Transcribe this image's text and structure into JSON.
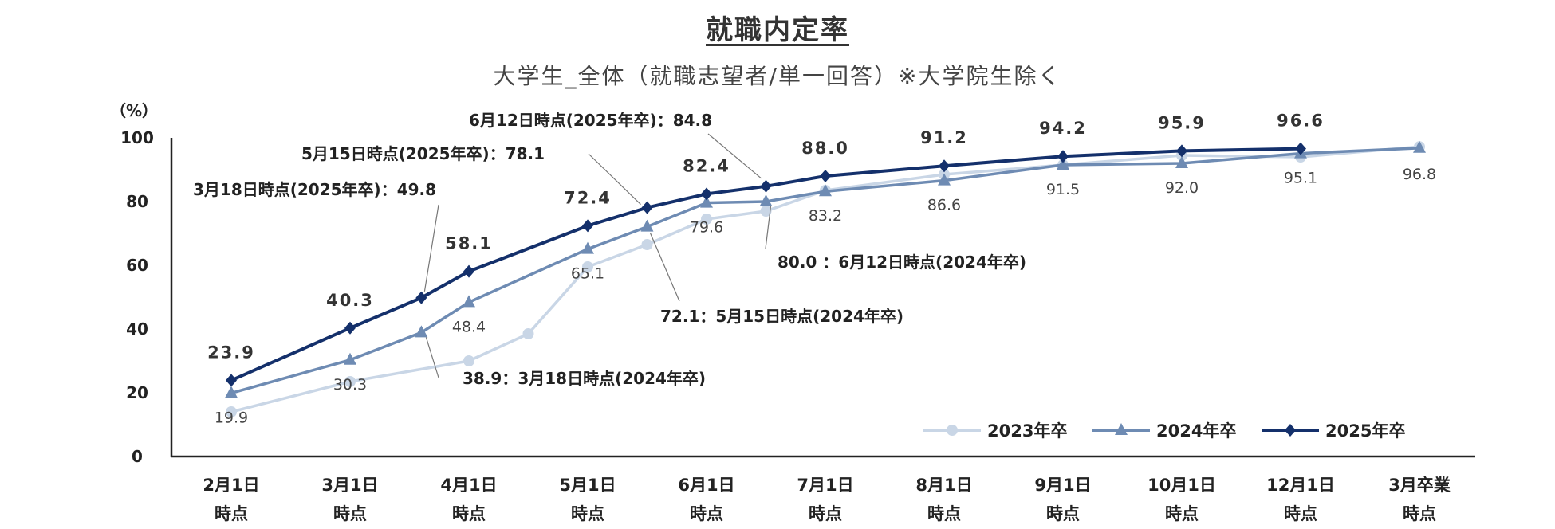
{
  "title": "就職内定率",
  "subtitle": "大学生_全体（就職志望者/単一回答）※大学院生除く",
  "chart_data": {
    "type": "line",
    "ylabel": "（%）",
    "ylim": [
      0,
      100
    ],
    "yticks": [
      0,
      20,
      40,
      60,
      80,
      100
    ],
    "x": [
      0,
      1,
      2,
      3,
      4,
      5,
      6,
      7,
      8,
      9,
      10
    ],
    "categories": [
      [
        "2月1日",
        "時点"
      ],
      [
        "3月1日",
        "時点"
      ],
      [
        "4月1日",
        "時点"
      ],
      [
        "5月1日",
        "時点"
      ],
      [
        "6月1日",
        "時点"
      ],
      [
        "7月1日",
        "時点"
      ],
      [
        "8月1日",
        "時点"
      ],
      [
        "9月1日",
        "時点"
      ],
      [
        "10月1日",
        "時点"
      ],
      [
        "12月1日",
        "時点"
      ],
      [
        "3月卒業",
        "時点"
      ]
    ],
    "legend_position": "bottom-right",
    "series": [
      {
        "name": "2023年卒",
        "color": "#c9d6e6",
        "marker": "circle",
        "points": [
          [
            0,
            14.0
          ],
          [
            1,
            23.5
          ],
          [
            2,
            30.0
          ],
          [
            2.5,
            38.5
          ],
          [
            3,
            59.5
          ],
          [
            3.5,
            66.5
          ],
          [
            4,
            74.5
          ],
          [
            4.5,
            77.0
          ],
          [
            5,
            83.5
          ],
          [
            6,
            88.5
          ],
          [
            7,
            91.5
          ],
          [
            8,
            94.5
          ],
          [
            9,
            94.0
          ],
          [
            10,
            97.2
          ]
        ]
      },
      {
        "name": "2024年卒",
        "color": "#6e8bb3",
        "marker": "triangle",
        "points": [
          [
            0,
            19.9
          ],
          [
            1,
            30.3
          ],
          [
            1.6,
            38.9
          ],
          [
            2,
            48.4
          ],
          [
            3,
            65.1
          ],
          [
            3.5,
            72.1
          ],
          [
            4,
            79.6
          ],
          [
            4.5,
            80.0
          ],
          [
            5,
            83.2
          ],
          [
            6,
            86.6
          ],
          [
            7,
            91.5
          ],
          [
            8,
            92.0
          ],
          [
            9,
            95.1
          ],
          [
            10,
            96.8
          ]
        ]
      },
      {
        "name": "2025年卒",
        "color": "#14306b",
        "marker": "diamond",
        "points": [
          [
            0,
            23.9
          ],
          [
            1,
            40.3
          ],
          [
            1.6,
            49.8
          ],
          [
            2,
            58.1
          ],
          [
            3,
            72.4
          ],
          [
            3.5,
            78.1
          ],
          [
            4,
            82.4
          ],
          [
            4.5,
            84.8
          ],
          [
            5,
            88.0
          ],
          [
            6,
            91.2
          ],
          [
            7,
            94.2
          ],
          [
            8,
            95.9
          ],
          [
            9,
            96.6
          ]
        ]
      }
    ],
    "data_labels": [
      {
        "series": "2025年卒",
        "x": 0,
        "text": "23.9"
      },
      {
        "series": "2025年卒",
        "x": 1,
        "text": "40.3"
      },
      {
        "series": "2025年卒",
        "x": 2,
        "text": "58.1"
      },
      {
        "series": "2025年卒",
        "x": 3,
        "text": "72.4"
      },
      {
        "series": "2025年卒",
        "x": 4,
        "text": "82.4"
      },
      {
        "series": "2025年卒",
        "x": 5,
        "text": "88.0"
      },
      {
        "series": "2025年卒",
        "x": 6,
        "text": "91.2"
      },
      {
        "series": "2025年卒",
        "x": 7,
        "text": "94.2"
      },
      {
        "series": "2025年卒",
        "x": 8,
        "text": "95.9"
      },
      {
        "series": "2025年卒",
        "x": 9,
        "text": "96.6"
      },
      {
        "series": "2024年卒",
        "x": 0,
        "text": "19.9"
      },
      {
        "series": "2024年卒",
        "x": 1,
        "text": "30.3"
      },
      {
        "series": "2024年卒",
        "x": 2,
        "text": "48.4"
      },
      {
        "series": "2024年卒",
        "x": 3,
        "text": "65.1"
      },
      {
        "series": "2024年卒",
        "x": 4,
        "text": "79.6"
      },
      {
        "series": "2024年卒",
        "x": 5,
        "text": "83.2"
      },
      {
        "series": "2024年卒",
        "x": 6,
        "text": "86.6"
      },
      {
        "series": "2024年卒",
        "x": 7,
        "text": "91.5"
      },
      {
        "series": "2024年卒",
        "x": 8,
        "text": "92.0"
      },
      {
        "series": "2024年卒",
        "x": 9,
        "text": "95.1"
      },
      {
        "series": "2024年卒",
        "x": 10,
        "text": "96.8"
      }
    ],
    "annotations": [
      {
        "series": "2025年卒",
        "x": 4.5,
        "text": "6月12日時点(2025年卒)：84.8"
      },
      {
        "series": "2025年卒",
        "x": 3.5,
        "text": "5月15日時点(2025年卒)：78.1"
      },
      {
        "series": "2025年卒",
        "x": 1.6,
        "text": "3月18日時点(2025年卒)：49.8"
      },
      {
        "series": "2024年卒",
        "x": 4.5,
        "text": "80.0 ：6月12日時点(2024年卒)"
      },
      {
        "series": "2024年卒",
        "x": 3.5,
        "text": "72.1：5月15日時点(2024年卒)"
      },
      {
        "series": "2024年卒",
        "x": 1.6,
        "text": "38.9：3月18日時点(2024年卒)"
      }
    ]
  }
}
